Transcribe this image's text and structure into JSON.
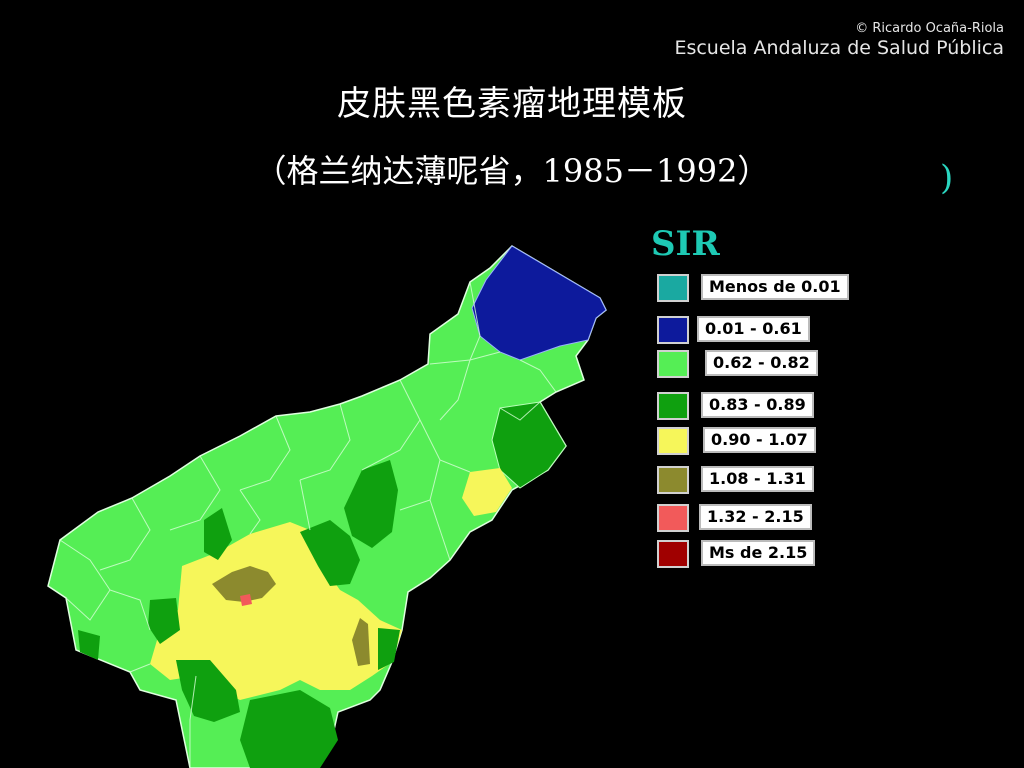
{
  "credit": {
    "copyright": "© Ricardo Ocaña-Riola",
    "institution": "Escuela Andaluza de Salud Pública"
  },
  "title": "皮肤黑色素瘤地理模板",
  "subtitle": "（格兰纳达薄呢省，1985－1992）",
  "stray_glyph": ")",
  "legend": {
    "title": "SIR",
    "items": [
      {
        "label": "Menos de 0.01",
        "color": "#1aa9a1"
      },
      {
        "label": "0.01 - 0.61",
        "color": "#0d1a9c"
      },
      {
        "label": "0.62 - 0.82",
        "color": "#55ee55"
      },
      {
        "label": "0.83 - 0.89",
        "color": "#0fa00f"
      },
      {
        "label": "0.90 - 1.07",
        "color": "#f6f65a"
      },
      {
        "label": "1.08 - 1.31",
        "color": "#8c8a2e"
      },
      {
        "label": "1.32 - 2.15",
        "color": "#f25a5a"
      },
      {
        "label": "Ms de 2.15",
        "color": "#a00000"
      }
    ]
  }
}
